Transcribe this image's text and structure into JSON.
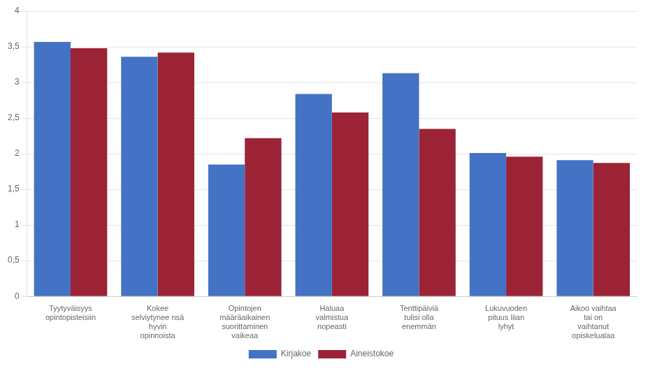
{
  "chart_data": {
    "type": "bar",
    "categories": [
      "Tyytyväisyys\nopintopisteisiin",
      "Kokee\nselviytynee nsä\nhyvin\nopinnoista",
      "Opintojen\nmääräaikainen\nsuorittaminen\nvaikeaa",
      "Haluaa\nvalmistua\nnopeasti",
      "Tenttipäiviä\ntulisi olla\nenemmän",
      "Lukuvuoden\npituus liian\nlyhyt",
      "Aikoo vaihtaa\ntai on\nvaihtanut\nopiskelualaa"
    ],
    "series": [
      {
        "name": "Kirjakoe",
        "color": "#4472C4",
        "values": [
          3.57,
          3.36,
          1.85,
          2.84,
          3.13,
          2.01,
          1.91
        ]
      },
      {
        "name": "Aineistokoe",
        "color": "#9B2335",
        "values": [
          3.48,
          3.42,
          2.22,
          2.58,
          2.35,
          1.96,
          1.87
        ]
      }
    ],
    "ylim": [
      0,
      4
    ],
    "yticks": [
      0,
      {
        "value": 0.5,
        "label": "0,5"
      },
      1,
      {
        "value": 1.5,
        "label": "1,5"
      },
      2,
      {
        "value": 2.5,
        "label": "2,5"
      },
      3,
      {
        "value": 3.5,
        "label": "3,5"
      },
      4
    ],
    "grid": true,
    "legend": "bottom"
  }
}
